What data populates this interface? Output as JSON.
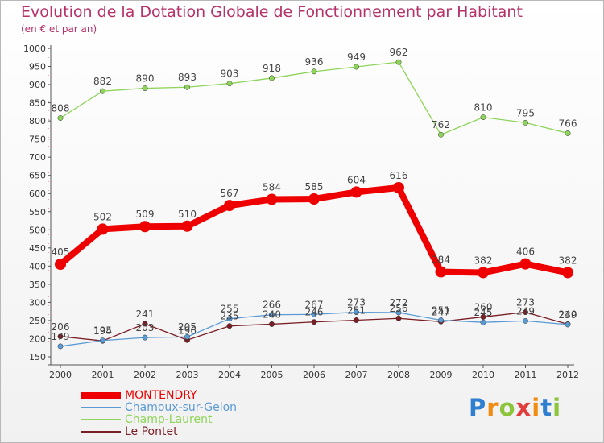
{
  "title": "Evolution de la Dotation Globale de Fonctionnement par Habitant",
  "subtitle": "(en € et par an)",
  "chart_data": {
    "type": "line",
    "categories": [
      "2000",
      "2001",
      "2002",
      "2003",
      "2004",
      "2005",
      "2006",
      "2007",
      "2008",
      "2009",
      "2010",
      "2011",
      "2012"
    ],
    "ylim": [
      150,
      1000
    ],
    "yticks": [
      150,
      200,
      250,
      300,
      350,
      400,
      450,
      500,
      550,
      600,
      650,
      700,
      750,
      800,
      850,
      900,
      950,
      1000
    ],
    "grid": false,
    "legend_position": "bottom-left",
    "series": [
      {
        "name": "MONTENDRY",
        "color": "#ee0000",
        "values": [
          405,
          502,
          509,
          510,
          567,
          584,
          585,
          604,
          616,
          384,
          382,
          406,
          382
        ],
        "labels": [
          "405",
          "502",
          "509",
          "510",
          "567",
          "584",
          "585",
          "604",
          "616",
          "384",
          "382",
          "406",
          "382"
        ]
      },
      {
        "name": "Chamoux-sur-Gelon",
        "color": "#5b9bd5",
        "values": [
          179,
          195,
          203,
          205,
          255,
          266,
          267,
          273,
          272,
          251,
          245,
          249,
          239
        ],
        "labels": [
          "179",
          "195",
          "203",
          "205",
          "255",
          "266",
          "267",
          "273",
          "272",
          "251",
          "245",
          "249",
          "239"
        ]
      },
      {
        "name": "Champ-Laurent",
        "color": "#8fd45a",
        "values": [
          808,
          882,
          890,
          893,
          903,
          918,
          936,
          949,
          962,
          762,
          810,
          795,
          766
        ],
        "labels": [
          "808",
          "882",
          "890",
          "893",
          "903",
          "918",
          "936",
          "949",
          "962",
          "762",
          "810",
          "795",
          "766"
        ]
      },
      {
        "name": "Le Pontet",
        "color": "#7a1e25",
        "values": [
          206,
          194,
          241,
          196,
          235,
          240,
          246,
          251,
          256,
          247,
          260,
          273,
          240
        ],
        "labels": [
          "206",
          "194",
          "241",
          "196",
          "235",
          "240",
          "246",
          "251",
          "256",
          "247",
          "260",
          "273",
          "240"
        ]
      }
    ]
  },
  "logo": {
    "letters": [
      "P",
      "r",
      "o",
      "x",
      "i",
      "t",
      "i"
    ],
    "colors": [
      "#2e7fd0",
      "#f08c14",
      "#8cc43c",
      "#e23c3c",
      "#f08c14",
      "#2e7fd0",
      "#8cc43c"
    ]
  }
}
